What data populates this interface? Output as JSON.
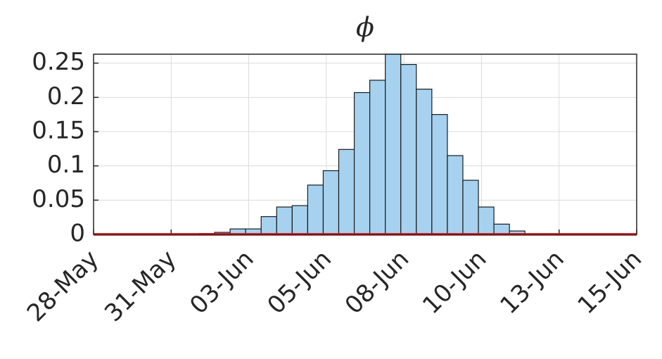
{
  "chart_data": {
    "type": "histogram",
    "title": "ϕ",
    "bins": [
      3.4,
      3.9,
      4.4,
      4.9,
      5.4,
      5.9,
      6.4,
      6.9,
      7.4,
      7.9,
      8.4,
      8.9,
      9.4,
      9.9,
      10.4,
      10.9,
      11.4,
      11.9,
      12.4,
      12.9,
      13.4,
      13.9
    ],
    "counts": [
      0.001,
      0.003,
      0.008,
      0.008,
      0.026,
      0.04,
      0.042,
      0.072,
      0.093,
      0.124,
      0.207,
      0.225,
      0.263,
      0.248,
      0.212,
      0.175,
      0.115,
      0.079,
      0.04,
      0.015,
      0.005
    ],
    "color": "#a6d2f0",
    "edgecolor": "#1a1a1a",
    "line": {
      "color": "#e31a1c",
      "x": [
        0,
        17.5
      ],
      "y": [
        0,
        0
      ]
    },
    "xlim": [
      0,
      17.5
    ],
    "xticks": [
      {
        "value": 0,
        "label": "28-May"
      },
      {
        "value": 2.5,
        "label": "31-May"
      },
      {
        "value": 5,
        "label": "03-Jun"
      },
      {
        "value": 7.5,
        "label": "05-Jun"
      },
      {
        "value": 10,
        "label": "08-Jun"
      },
      {
        "value": 12.5,
        "label": "10-Jun"
      },
      {
        "value": 15,
        "label": "13-Jun"
      },
      {
        "value": 17.5,
        "label": "15-Jun"
      }
    ],
    "ylim": [
      0,
      0.263
    ],
    "yticks": [
      0,
      0.05,
      0.1,
      0.15,
      0.2,
      0.25
    ],
    "grid": true
  }
}
